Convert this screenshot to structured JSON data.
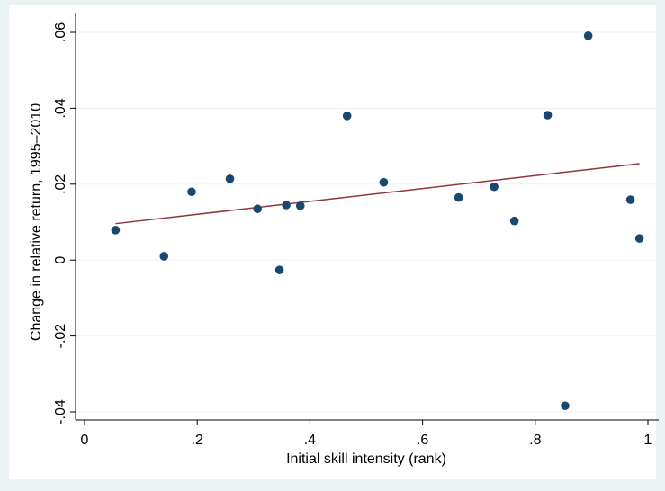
{
  "chart_data": {
    "type": "scatter",
    "title": "",
    "xlabel": "Initial skill intensity (rank)",
    "ylabel": "Change in relative return, 1995–2010",
    "xlim": [
      0,
      1
    ],
    "ylim": [
      -0.04,
      0.06
    ],
    "x_ticks": [
      0,
      0.2,
      0.4,
      0.6,
      0.8,
      1
    ],
    "x_tick_labels": [
      "0",
      ".2",
      ".4",
      ".6",
      ".8",
      "1"
    ],
    "y_ticks": [
      -0.04,
      -0.02,
      0,
      0.02,
      0.04,
      0.06
    ],
    "y_tick_labels": [
      "-.04",
      "-.02",
      "0",
      ".02",
      ".04",
      ".06"
    ],
    "grid": true,
    "legend": "none",
    "series": [
      {
        "kind": "scatter",
        "color": "#1a476f",
        "points": [
          {
            "x": 0.055,
            "y": 0.0079
          },
          {
            "x": 0.141,
            "y": 0.001
          },
          {
            "x": 0.19,
            "y": 0.018
          },
          {
            "x": 0.258,
            "y": 0.0214
          },
          {
            "x": 0.307,
            "y": 0.0135
          },
          {
            "x": 0.346,
            "y": -0.0026
          },
          {
            "x": 0.358,
            "y": 0.0145
          },
          {
            "x": 0.383,
            "y": 0.0143
          },
          {
            "x": 0.466,
            "y": 0.038
          },
          {
            "x": 0.531,
            "y": 0.0205
          },
          {
            "x": 0.664,
            "y": 0.0165
          },
          {
            "x": 0.727,
            "y": 0.0193
          },
          {
            "x": 0.763,
            "y": 0.0103
          },
          {
            "x": 0.822,
            "y": 0.0382
          },
          {
            "x": 0.853,
            "y": -0.0384
          },
          {
            "x": 0.894,
            "y": 0.0591
          },
          {
            "x": 0.969,
            "y": 0.0159
          },
          {
            "x": 0.985,
            "y": 0.0057
          }
        ]
      },
      {
        "kind": "line",
        "color": "#90353b",
        "points": [
          {
            "x": 0.055,
            "y": 0.0096
          },
          {
            "x": 0.985,
            "y": 0.0254
          }
        ]
      }
    ]
  }
}
